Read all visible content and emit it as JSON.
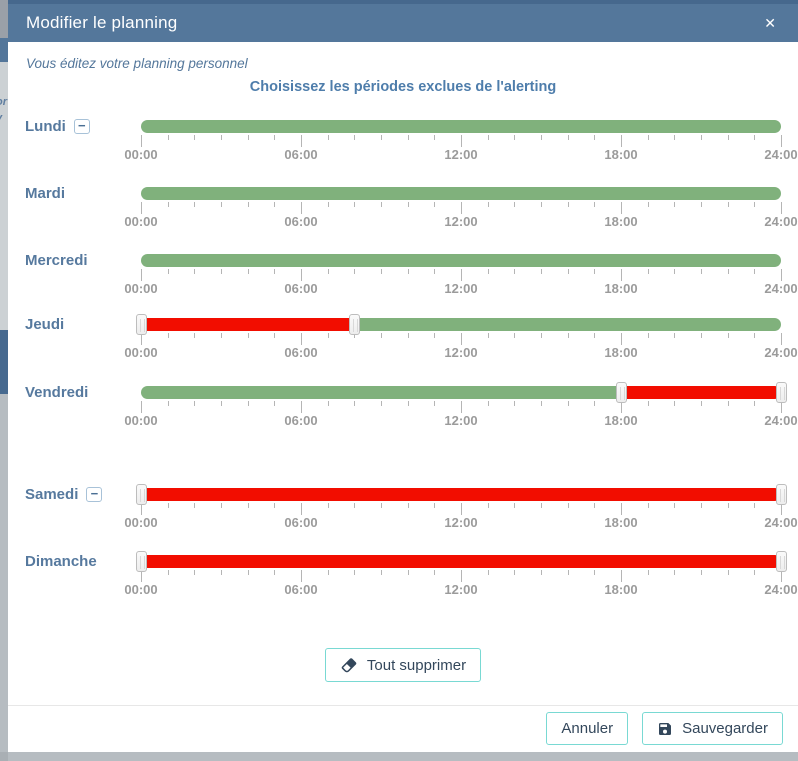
{
  "backdrop": {
    "fragments": [
      "or",
      "v"
    ]
  },
  "modal": {
    "title": "Modifier le planning",
    "close_glyph": "✕",
    "subtitle": "Vous éditez votre planning personnel",
    "heading": "Choisissez les périodes exclues de l'alerting",
    "clear_button_label": "Tout supprimer",
    "footer": {
      "cancel_label": "Annuler",
      "save_label": "Sauvegarder"
    },
    "colors": {
      "header_bg": "#54779b",
      "accent_teal": "#79d9d3",
      "button_text": "#33475b",
      "day_label": "#56799e"
    }
  },
  "schedule": {
    "axis": {
      "total_hours": 24,
      "minor_tick_every_hours": 1,
      "major_tick_every_hours": 6,
      "tick_labels": [
        "00:00",
        "06:00",
        "12:00",
        "18:00",
        "24:00"
      ]
    },
    "colors": {
      "included": "#80b17c",
      "excluded": "#f20d00"
    },
    "remove_glyph": "−",
    "days": [
      {
        "label": "Lundi",
        "removable": true,
        "segments": [
          {
            "from": 0,
            "to": 24,
            "state": "included"
          }
        ],
        "handles": []
      },
      {
        "label": "Mardi",
        "removable": false,
        "segments": [
          {
            "from": 0,
            "to": 24,
            "state": "included"
          }
        ],
        "handles": []
      },
      {
        "label": "Mercredi",
        "removable": false,
        "segments": [
          {
            "from": 0,
            "to": 24,
            "state": "included"
          }
        ],
        "handles": []
      },
      {
        "label": "Jeudi",
        "removable": false,
        "segments": [
          {
            "from": 0,
            "to": 8,
            "state": "excluded"
          },
          {
            "from": 8,
            "to": 24,
            "state": "included"
          }
        ],
        "handles": [
          0,
          8
        ]
      },
      {
        "label": "Vendredi",
        "removable": false,
        "segments": [
          {
            "from": 0,
            "to": 18,
            "state": "included"
          },
          {
            "from": 18,
            "to": 24,
            "state": "excluded"
          }
        ],
        "handles": [
          18,
          24
        ]
      },
      {
        "label": "Samedi",
        "removable": true,
        "segments": [
          {
            "from": 0,
            "to": 24,
            "state": "excluded"
          }
        ],
        "handles": [
          0,
          24
        ]
      },
      {
        "label": "Dimanche",
        "removable": false,
        "segments": [
          {
            "from": 0,
            "to": 24,
            "state": "excluded"
          }
        ],
        "handles": [
          0,
          24
        ]
      }
    ]
  }
}
